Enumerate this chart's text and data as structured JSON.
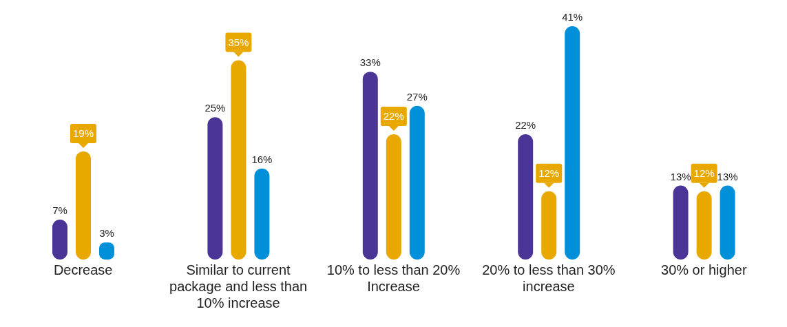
{
  "chart_data": {
    "type": "bar",
    "categories": [
      "Decrease",
      "Similar to current package and less than 10% increase",
      "10% to less than 20% Increase",
      "20% to less than 30% increase",
      "30% or higher"
    ],
    "series": [
      {
        "color": "#4a3597",
        "values": [
          7,
          25,
          33,
          22,
          13
        ],
        "value_labels": [
          "7%",
          "25%",
          "33%",
          "22%",
          "13%"
        ]
      },
      {
        "color": "#e8a800",
        "values": [
          19,
          35,
          22,
          12,
          12
        ],
        "value_labels": [
          "19%",
          "35%",
          "22%",
          "12%",
          "12%"
        ]
      },
      {
        "color": "#0090d9",
        "values": [
          3,
          16,
          27,
          41,
          13
        ],
        "value_labels": [
          "3%",
          "16%",
          "27%",
          "41%",
          "13%"
        ]
      }
    ],
    "grid": false,
    "legend": false
  }
}
